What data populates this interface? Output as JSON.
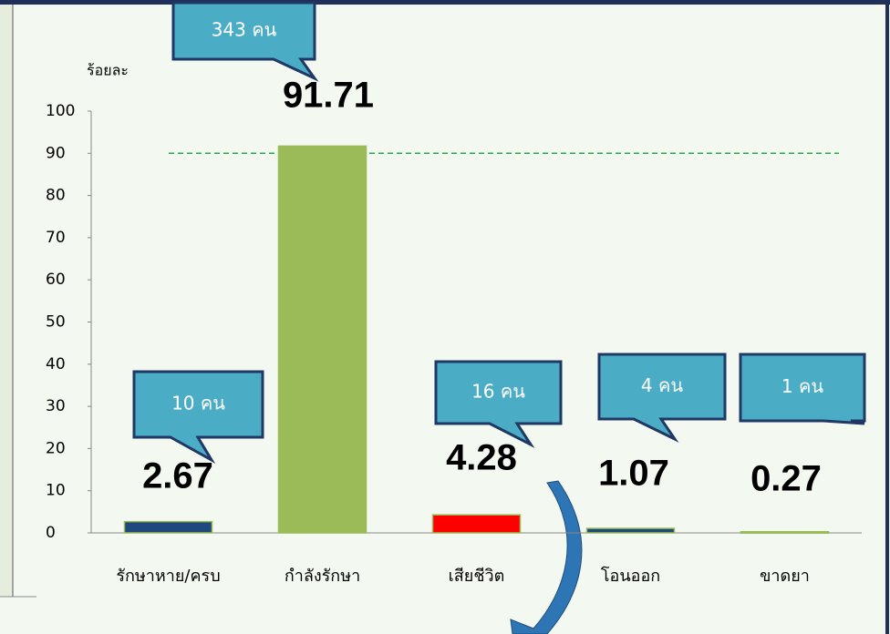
{
  "chart_data": {
    "type": "bar",
    "y_axis_label": "ร้อยละ",
    "categories": [
      "รักษาหาย/ครบ",
      "กำลังรักษา",
      "เสียชีวิต",
      "โอนออก",
      "ขาดยา"
    ],
    "values": [
      2.67,
      91.71,
      4.28,
      1.07,
      0.27
    ],
    "colors": [
      "#1f497d",
      "#9bbb59",
      "#ff0000",
      "#1f497d",
      "#9bbb59"
    ],
    "annotations": [
      "10 คน",
      "343 คน",
      "16 คน",
      "4 คน",
      "1 คน"
    ],
    "reference_line": 90,
    "reference_color": "#22aa44",
    "ylim": [
      0,
      100
    ],
    "yticks": [
      0,
      10,
      20,
      30,
      40,
      50,
      60,
      70,
      80,
      90,
      100
    ]
  }
}
